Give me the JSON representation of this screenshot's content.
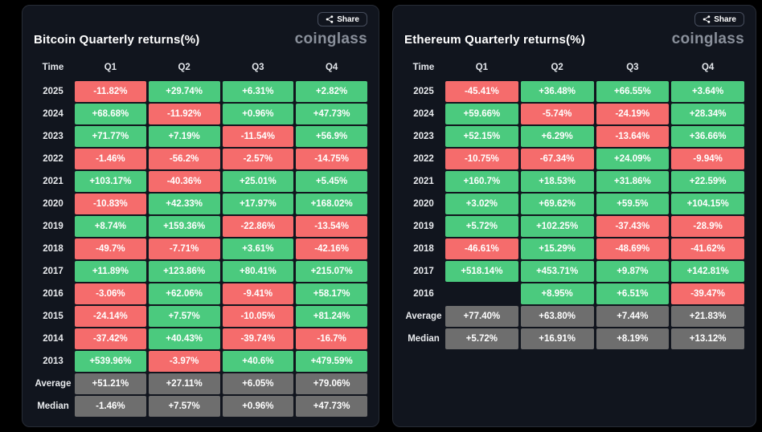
{
  "ui": {
    "share_label": "Share",
    "logo": "coinglass"
  },
  "colors": {
    "positive": "#4bca7e",
    "negative": "#f56c6c",
    "neutral": "#6e6e6e",
    "panel_bg": "#11151e",
    "page_bg": "#000000"
  },
  "chart_data": [
    {
      "type": "table",
      "title": "Bitcoin Quarterly returns(%)",
      "columns": [
        "Time",
        "Q1",
        "Q2",
        "Q3",
        "Q4"
      ],
      "rows": [
        {
          "label": "2025",
          "kind": "year",
          "values": [
            "-11.82%",
            "+29.74%",
            "+6.31%",
            "+2.82%"
          ]
        },
        {
          "label": "2024",
          "kind": "year",
          "values": [
            "+68.68%",
            "-11.92%",
            "+0.96%",
            "+47.73%"
          ]
        },
        {
          "label": "2023",
          "kind": "year",
          "values": [
            "+71.77%",
            "+7.19%",
            "-11.54%",
            "+56.9%"
          ]
        },
        {
          "label": "2022",
          "kind": "year",
          "values": [
            "-1.46%",
            "-56.2%",
            "-2.57%",
            "-14.75%"
          ]
        },
        {
          "label": "2021",
          "kind": "year",
          "values": [
            "+103.17%",
            "-40.36%",
            "+25.01%",
            "+5.45%"
          ]
        },
        {
          "label": "2020",
          "kind": "year",
          "values": [
            "-10.83%",
            "+42.33%",
            "+17.97%",
            "+168.02%"
          ]
        },
        {
          "label": "2019",
          "kind": "year",
          "values": [
            "+8.74%",
            "+159.36%",
            "-22.86%",
            "-13.54%"
          ]
        },
        {
          "label": "2018",
          "kind": "year",
          "values": [
            "-49.7%",
            "-7.71%",
            "+3.61%",
            "-42.16%"
          ]
        },
        {
          "label": "2017",
          "kind": "year",
          "values": [
            "+11.89%",
            "+123.86%",
            "+80.41%",
            "+215.07%"
          ]
        },
        {
          "label": "2016",
          "kind": "year",
          "values": [
            "-3.06%",
            "+62.06%",
            "-9.41%",
            "+58.17%"
          ]
        },
        {
          "label": "2015",
          "kind": "year",
          "values": [
            "-24.14%",
            "+7.57%",
            "-10.05%",
            "+81.24%"
          ]
        },
        {
          "label": "2014",
          "kind": "year",
          "values": [
            "-37.42%",
            "+40.43%",
            "-39.74%",
            "-16.7%"
          ]
        },
        {
          "label": "2013",
          "kind": "year",
          "values": [
            "+539.96%",
            "-3.97%",
            "+40.6%",
            "+479.59%"
          ]
        },
        {
          "label": "Average",
          "kind": "summary",
          "values": [
            "+51.21%",
            "+27.11%",
            "+6.05%",
            "+79.06%"
          ]
        },
        {
          "label": "Median",
          "kind": "summary",
          "values": [
            "-1.46%",
            "+7.57%",
            "+0.96%",
            "+47.73%"
          ]
        }
      ]
    },
    {
      "type": "table",
      "title": "Ethereum Quarterly returns(%)",
      "columns": [
        "Time",
        "Q1",
        "Q2",
        "Q3",
        "Q4"
      ],
      "rows": [
        {
          "label": "2025",
          "kind": "year",
          "values": [
            "-45.41%",
            "+36.48%",
            "+66.55%",
            "+3.64%"
          ]
        },
        {
          "label": "2024",
          "kind": "year",
          "values": [
            "+59.66%",
            "-5.74%",
            "-24.19%",
            "+28.34%"
          ]
        },
        {
          "label": "2023",
          "kind": "year",
          "values": [
            "+52.15%",
            "+6.29%",
            "-13.64%",
            "+36.66%"
          ]
        },
        {
          "label": "2022",
          "kind": "year",
          "values": [
            "-10.75%",
            "-67.34%",
            "+24.09%",
            "-9.94%"
          ]
        },
        {
          "label": "2021",
          "kind": "year",
          "values": [
            "+160.7%",
            "+18.53%",
            "+31.86%",
            "+22.59%"
          ]
        },
        {
          "label": "2020",
          "kind": "year",
          "values": [
            "+3.02%",
            "+69.62%",
            "+59.5%",
            "+104.15%"
          ]
        },
        {
          "label": "2019",
          "kind": "year",
          "values": [
            "+5.72%",
            "+102.25%",
            "-37.43%",
            "-28.9%"
          ]
        },
        {
          "label": "2018",
          "kind": "year",
          "values": [
            "-46.61%",
            "+15.29%",
            "-48.69%",
            "-41.62%"
          ]
        },
        {
          "label": "2017",
          "kind": "year",
          "values": [
            "+518.14%",
            "+453.71%",
            "+9.87%",
            "+142.81%"
          ]
        },
        {
          "label": "2016",
          "kind": "year",
          "values": [
            "",
            "+8.95%",
            "+6.51%",
            "-39.47%"
          ]
        },
        {
          "label": "Average",
          "kind": "summary",
          "values": [
            "+77.40%",
            "+63.80%",
            "+7.44%",
            "+21.83%"
          ]
        },
        {
          "label": "Median",
          "kind": "summary",
          "values": [
            "+5.72%",
            "+16.91%",
            "+8.19%",
            "+13.12%"
          ]
        }
      ]
    }
  ]
}
